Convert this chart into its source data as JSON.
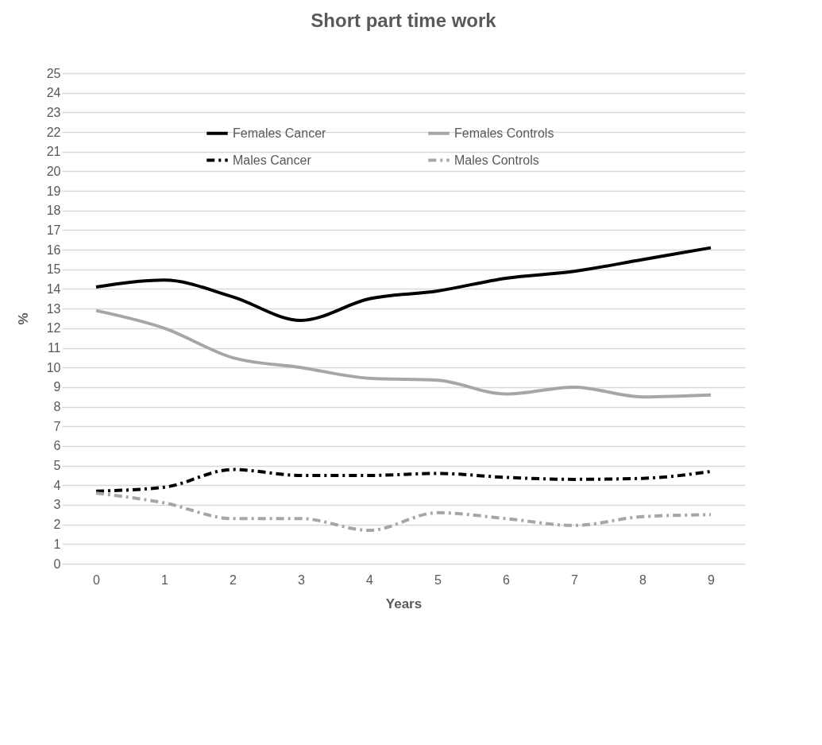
{
  "chart_data": {
    "type": "line",
    "title": "Short part time work",
    "xlabel": "Years",
    "ylabel": "%",
    "categories": [
      "0",
      "1",
      "2",
      "3",
      "4",
      "5",
      "6",
      "7",
      "8",
      "9"
    ],
    "series": [
      {
        "name": "Females Cancer",
        "color": "#000000",
        "line_style": "solid",
        "values": [
          14.1,
          14.45,
          13.6,
          12.4,
          13.5,
          13.9,
          14.55,
          14.9,
          15.5,
          16.1
        ]
      },
      {
        "name": "Males Cancer",
        "color": "#000000",
        "line_style": "dashed",
        "values": [
          3.7,
          3.9,
          4.8,
          4.5,
          4.5,
          4.6,
          4.4,
          4.3,
          4.35,
          4.7
        ]
      },
      {
        "name": "Females Controls",
        "color": "#a6a6a6",
        "line_style": "solid",
        "values": [
          12.9,
          12.0,
          10.5,
          10.0,
          9.45,
          9.35,
          8.65,
          9.0,
          8.5,
          8.6
        ]
      },
      {
        "name": "Males Controls",
        "color": "#a6a6a6",
        "line_style": "dashed",
        "values": [
          3.6,
          3.1,
          2.3,
          2.3,
          1.7,
          2.6,
          2.3,
          1.95,
          2.4,
          2.5
        ]
      }
    ],
    "ylim": [
      0,
      25
    ],
    "yticks": [
      0,
      1,
      2,
      3,
      4,
      5,
      6,
      7,
      8,
      9,
      10,
      11,
      12,
      13,
      14,
      15,
      16,
      17,
      18,
      19,
      20,
      21,
      22,
      23,
      24,
      25
    ],
    "grid": "y",
    "legend": "top",
    "marker": "none"
  }
}
